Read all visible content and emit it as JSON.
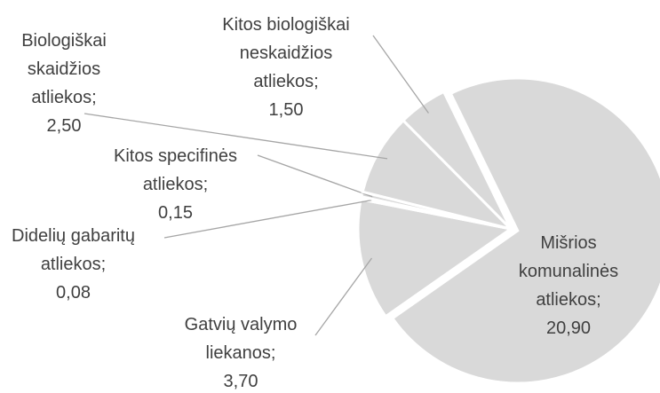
{
  "chart_data": {
    "type": "pie",
    "categories": [
      "Mišrios komunalinės atliekos",
      "Gatvių valymo liekanos",
      "Didelių gabaritų atliekos",
      "Kitos  specifinės atliekos",
      "Biologiškai skaidžios atliekos",
      "Kitos biologiškai neskaidžios atliekos"
    ],
    "label_separator": ";",
    "values": [
      20.9,
      3.7,
      0.08,
      0.15,
      2.5,
      1.5
    ],
    "value_labels": [
      "20,90",
      "3,70",
      "0,08",
      "0,15",
      "2,50",
      "1,50"
    ],
    "color": "#d9d9d9"
  }
}
